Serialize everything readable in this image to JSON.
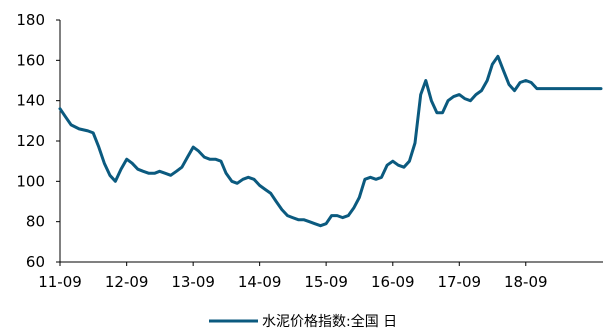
{
  "chart_data": {
    "type": "line",
    "title": "",
    "xlabel": "",
    "ylabel": "",
    "ylim": [
      60,
      180
    ],
    "y_ticks": [
      60,
      80,
      100,
      120,
      140,
      160,
      180
    ],
    "x_ticks": [
      "11-09",
      "12-09",
      "13-09",
      "14-09",
      "15-09",
      "16-09",
      "17-09",
      "18-09"
    ],
    "grid": false,
    "legend_position": "bottom",
    "series": [
      {
        "name": "水泥价格指数:全国 日",
        "color": "#0b5a7f",
        "x": [
          "2011-09-01",
          "2011-10-01",
          "2011-11-01",
          "2011-12-15",
          "2012-02-01",
          "2012-03-01",
          "2012-04-01",
          "2012-05-01",
          "2012-06-01",
          "2012-07-01",
          "2012-08-01",
          "2012-09-01",
          "2012-10-01",
          "2012-11-01",
          "2012-12-01",
          "2013-01-01",
          "2013-02-01",
          "2013-03-01",
          "2013-04-01",
          "2013-05-01",
          "2013-06-01",
          "2013-07-01",
          "2013-08-01",
          "2013-09-01",
          "2013-10-01",
          "2013-11-01",
          "2013-12-01",
          "2014-01-01",
          "2014-02-01",
          "2014-03-01",
          "2014-04-01",
          "2014-05-01",
          "2014-06-01",
          "2014-07-01",
          "2014-08-01",
          "2014-09-01",
          "2014-10-01",
          "2014-11-01",
          "2014-12-01",
          "2015-01-01",
          "2015-02-01",
          "2015-03-01",
          "2015-04-01",
          "2015-05-01",
          "2015-06-01",
          "2015-07-01",
          "2015-08-01",
          "2015-09-01",
          "2015-10-01",
          "2015-11-01",
          "2015-12-01",
          "2016-01-01",
          "2016-02-01",
          "2016-03-01",
          "2016-04-01",
          "2016-05-01",
          "2016-06-01",
          "2016-07-01",
          "2016-08-01",
          "2016-09-01",
          "2016-10-01",
          "2016-11-01",
          "2016-12-01",
          "2017-01-01",
          "2017-02-01",
          "2017-03-01",
          "2017-04-01",
          "2017-05-01",
          "2017-06-01",
          "2017-07-01",
          "2017-08-01",
          "2017-09-01",
          "2017-10-01",
          "2017-11-01",
          "2017-12-01",
          "2018-01-01",
          "2018-02-01",
          "2018-03-01",
          "2018-04-01",
          "2018-05-01",
          "2018-06-01",
          "2018-07-01",
          "2018-08-01",
          "2018-09-01",
          "2018-10-01",
          "2018-11-01",
          "2018-12-01",
          "2019-01-01",
          "2019-02-01",
          "2019-03-01",
          "2019-04-01",
          "2019-05-01",
          "2019-06-01",
          "2019-07-01",
          "2019-08-01",
          "2019-09-01",
          "2019-10-01",
          "2019-11-01"
        ],
        "values": [
          136,
          132,
          128,
          126,
          125,
          124,
          117,
          109,
          103,
          100,
          106,
          111,
          109,
          106,
          105,
          104,
          104,
          105,
          104,
          103,
          105,
          107,
          112,
          117,
          115,
          112,
          111,
          111,
          110,
          104,
          100,
          99,
          101,
          102,
          101,
          98,
          96,
          94,
          90,
          86,
          83,
          82,
          81,
          81,
          80,
          79,
          78,
          79,
          83,
          83,
          82,
          83,
          87,
          92,
          101,
          102,
          101,
          102,
          108,
          110,
          108,
          107,
          110,
          119,
          143,
          150,
          140,
          134,
          134,
          140,
          142,
          143,
          141,
          140,
          143,
          145,
          150,
          158,
          162,
          155,
          148,
          145,
          149,
          150,
          149,
          146,
          146,
          146,
          146,
          146,
          146,
          146,
          146,
          146,
          146,
          146,
          146,
          146
        ]
      }
    ]
  }
}
